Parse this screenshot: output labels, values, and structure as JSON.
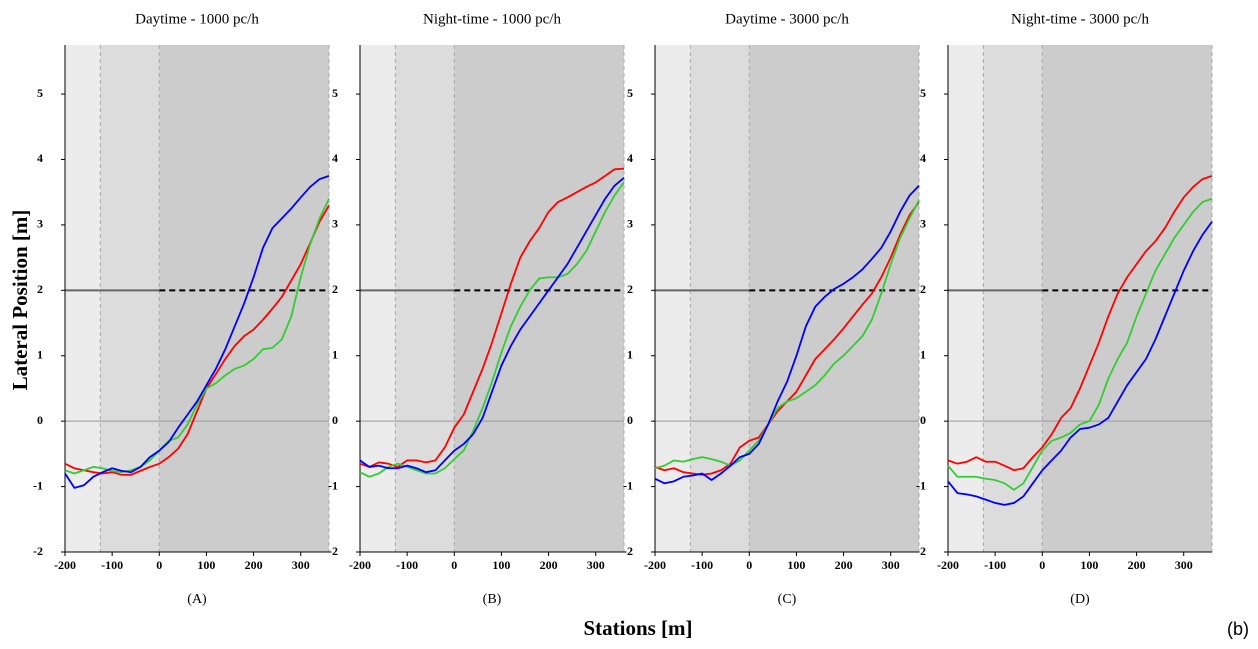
{
  "figure": {
    "ylabel": "Lateral Position [m]",
    "xlabel": "Stations [m]",
    "panel_tag": "(b)"
  },
  "chart_data": [
    {
      "type": "line",
      "title": "Daytime - 1000 pc/h",
      "sublabel": "(A)",
      "x": [
        -200,
        -180,
        -160,
        -140,
        -120,
        -100,
        -80,
        -60,
        -40,
        -20,
        0,
        20,
        40,
        60,
        80,
        100,
        120,
        140,
        160,
        180,
        200,
        220,
        240,
        260,
        280,
        300,
        320,
        340,
        360
      ],
      "xlim": [
        -200,
        360
      ],
      "ylim": [
        -2,
        5.75
      ],
      "xticks": [
        -200,
        -100,
        0,
        100,
        200,
        300
      ],
      "yticks": [
        -2,
        -1,
        0,
        1,
        2,
        3,
        4,
        5
      ],
      "zone_edges": [
        -125,
        0
      ],
      "zero_line": 0,
      "target_line": 2,
      "series": [
        {
          "color": "#ff0000",
          "values": [
            -0.65,
            -0.72,
            -0.75,
            -0.78,
            -0.8,
            -0.78,
            -0.82,
            -0.82,
            -0.76,
            -0.7,
            -0.65,
            -0.55,
            -0.42,
            -0.2,
            0.15,
            0.5,
            0.72,
            0.95,
            1.15,
            1.3,
            1.4,
            1.55,
            1.72,
            1.9,
            2.15,
            2.4,
            2.72,
            3.05,
            3.3
          ]
        },
        {
          "color": "#33cc33",
          "values": [
            -0.75,
            -0.8,
            -0.75,
            -0.7,
            -0.72,
            -0.76,
            -0.78,
            -0.75,
            -0.7,
            -0.6,
            -0.45,
            -0.3,
            -0.25,
            -0.05,
            0.25,
            0.5,
            0.58,
            0.7,
            0.8,
            0.85,
            0.95,
            1.1,
            1.12,
            1.25,
            1.6,
            2.2,
            2.7,
            3.1,
            3.4
          ]
        },
        {
          "color": "#0000ff",
          "values": [
            -0.8,
            -1.02,
            -0.98,
            -0.85,
            -0.78,
            -0.72,
            -0.76,
            -0.78,
            -0.7,
            -0.55,
            -0.45,
            -0.32,
            -0.1,
            0.1,
            0.3,
            0.55,
            0.8,
            1.1,
            1.45,
            1.8,
            2.2,
            2.65,
            2.95,
            3.1,
            3.25,
            3.42,
            3.58,
            3.7,
            3.75
          ]
        }
      ]
    },
    {
      "type": "line",
      "title": "Night-time - 1000 pc/h",
      "sublabel": "(B)",
      "x": [
        -200,
        -180,
        -160,
        -140,
        -120,
        -100,
        -80,
        -60,
        -40,
        -20,
        0,
        20,
        40,
        60,
        80,
        100,
        120,
        140,
        160,
        180,
        200,
        220,
        240,
        260,
        280,
        300,
        320,
        340,
        360
      ],
      "xlim": [
        -200,
        360
      ],
      "ylim": [
        -2,
        5.75
      ],
      "xticks": [
        -200,
        -100,
        0,
        100,
        200,
        300
      ],
      "yticks": [
        -2,
        -1,
        0,
        1,
        2,
        3,
        4,
        5
      ],
      "zone_edges": [
        -125,
        0
      ],
      "zero_line": 0,
      "target_line": 2,
      "series": [
        {
          "color": "#ff0000",
          "values": [
            -0.65,
            -0.7,
            -0.63,
            -0.65,
            -0.7,
            -0.6,
            -0.6,
            -0.63,
            -0.6,
            -0.4,
            -0.1,
            0.1,
            0.45,
            0.8,
            1.2,
            1.65,
            2.1,
            2.5,
            2.75,
            2.95,
            3.2,
            3.35,
            3.42,
            3.5,
            3.58,
            3.65,
            3.75,
            3.85,
            3.86
          ]
        },
        {
          "color": "#33cc33",
          "values": [
            -0.78,
            -0.85,
            -0.8,
            -0.7,
            -0.65,
            -0.7,
            -0.75,
            -0.8,
            -0.8,
            -0.72,
            -0.58,
            -0.45,
            -0.15,
            0.2,
            0.6,
            1.05,
            1.45,
            1.75,
            2.0,
            2.18,
            2.2,
            2.2,
            2.25,
            2.4,
            2.6,
            2.9,
            3.2,
            3.45,
            3.65
          ]
        },
        {
          "color": "#0000ff",
          "values": [
            -0.6,
            -0.7,
            -0.68,
            -0.72,
            -0.72,
            -0.68,
            -0.72,
            -0.78,
            -0.75,
            -0.6,
            -0.45,
            -0.35,
            -0.2,
            0.05,
            0.45,
            0.85,
            1.15,
            1.4,
            1.6,
            1.8,
            2.0,
            2.2,
            2.4,
            2.65,
            2.9,
            3.15,
            3.4,
            3.6,
            3.72
          ]
        }
      ]
    },
    {
      "type": "line",
      "title": "Daytime - 3000 pc/h",
      "sublabel": "(C)",
      "x": [
        -200,
        -180,
        -160,
        -140,
        -120,
        -100,
        -80,
        -60,
        -40,
        -20,
        0,
        20,
        40,
        60,
        80,
        100,
        120,
        140,
        160,
        180,
        200,
        220,
        240,
        260,
        280,
        300,
        320,
        340,
        360
      ],
      "xlim": [
        -200,
        360
      ],
      "ylim": [
        -2,
        5.75
      ],
      "xticks": [
        -200,
        -100,
        0,
        100,
        200,
        300
      ],
      "yticks": [
        -2,
        -1,
        0,
        1,
        2,
        3,
        4,
        5
      ],
      "zone_edges": [
        -125,
        0
      ],
      "zero_line": 0,
      "target_line": 2,
      "series": [
        {
          "color": "#ff0000",
          "values": [
            -0.7,
            -0.75,
            -0.72,
            -0.78,
            -0.8,
            -0.82,
            -0.8,
            -0.75,
            -0.65,
            -0.4,
            -0.3,
            -0.25,
            -0.05,
            0.15,
            0.3,
            0.45,
            0.7,
            0.95,
            1.1,
            1.25,
            1.42,
            1.6,
            1.78,
            1.95,
            2.2,
            2.5,
            2.85,
            3.15,
            3.35
          ]
        },
        {
          "color": "#33cc33",
          "values": [
            -0.72,
            -0.68,
            -0.6,
            -0.62,
            -0.58,
            -0.55,
            -0.58,
            -0.62,
            -0.68,
            -0.6,
            -0.45,
            -0.3,
            -0.05,
            0.2,
            0.3,
            0.35,
            0.45,
            0.55,
            0.7,
            0.88,
            1.0,
            1.15,
            1.3,
            1.55,
            1.95,
            2.4,
            2.8,
            3.1,
            3.38
          ]
        },
        {
          "color": "#0000ff",
          "values": [
            -0.88,
            -0.95,
            -0.92,
            -0.85,
            -0.83,
            -0.8,
            -0.9,
            -0.8,
            -0.68,
            -0.55,
            -0.5,
            -0.35,
            -0.05,
            0.3,
            0.6,
            1.0,
            1.45,
            1.75,
            1.9,
            2.02,
            2.1,
            2.2,
            2.32,
            2.48,
            2.65,
            2.9,
            3.2,
            3.45,
            3.6
          ]
        }
      ]
    },
    {
      "type": "line",
      "title": "Night-time - 3000 pc/h",
      "sublabel": "(D)",
      "x": [
        -200,
        -180,
        -160,
        -140,
        -120,
        -100,
        -80,
        -60,
        -40,
        -20,
        0,
        20,
        40,
        60,
        80,
        100,
        120,
        140,
        160,
        180,
        200,
        220,
        240,
        260,
        280,
        300,
        320,
        340,
        360
      ],
      "xlim": [
        -200,
        360
      ],
      "ylim": [
        -2,
        5.75
      ],
      "xticks": [
        -200,
        -100,
        0,
        100,
        200,
        300
      ],
      "yticks": [
        -2,
        -1,
        0,
        1,
        2,
        3,
        4,
        5
      ],
      "zone_edges": [
        -125,
        0
      ],
      "zero_line": 0,
      "target_line": 2,
      "series": [
        {
          "color": "#ff0000",
          "values": [
            -0.6,
            -0.65,
            -0.62,
            -0.55,
            -0.62,
            -0.62,
            -0.68,
            -0.75,
            -0.72,
            -0.55,
            -0.4,
            -0.2,
            0.05,
            0.2,
            0.5,
            0.85,
            1.2,
            1.6,
            1.95,
            2.2,
            2.4,
            2.6,
            2.75,
            2.95,
            3.2,
            3.42,
            3.58,
            3.7,
            3.75
          ]
        },
        {
          "color": "#33cc33",
          "values": [
            -0.68,
            -0.85,
            -0.85,
            -0.85,
            -0.88,
            -0.9,
            -0.95,
            -1.05,
            -0.95,
            -0.7,
            -0.45,
            -0.3,
            -0.25,
            -0.18,
            -0.05,
            0.0,
            0.25,
            0.65,
            0.95,
            1.2,
            1.6,
            1.95,
            2.3,
            2.55,
            2.8,
            3.0,
            3.2,
            3.35,
            3.4
          ]
        },
        {
          "color": "#0000ff",
          "values": [
            -0.92,
            -1.1,
            -1.12,
            -1.15,
            -1.2,
            -1.25,
            -1.28,
            -1.25,
            -1.15,
            -0.95,
            -0.75,
            -0.6,
            -0.45,
            -0.25,
            -0.12,
            -0.1,
            -0.05,
            0.05,
            0.3,
            0.55,
            0.75,
            0.95,
            1.25,
            1.6,
            1.95,
            2.3,
            2.6,
            2.85,
            3.05
          ]
        }
      ]
    }
  ]
}
